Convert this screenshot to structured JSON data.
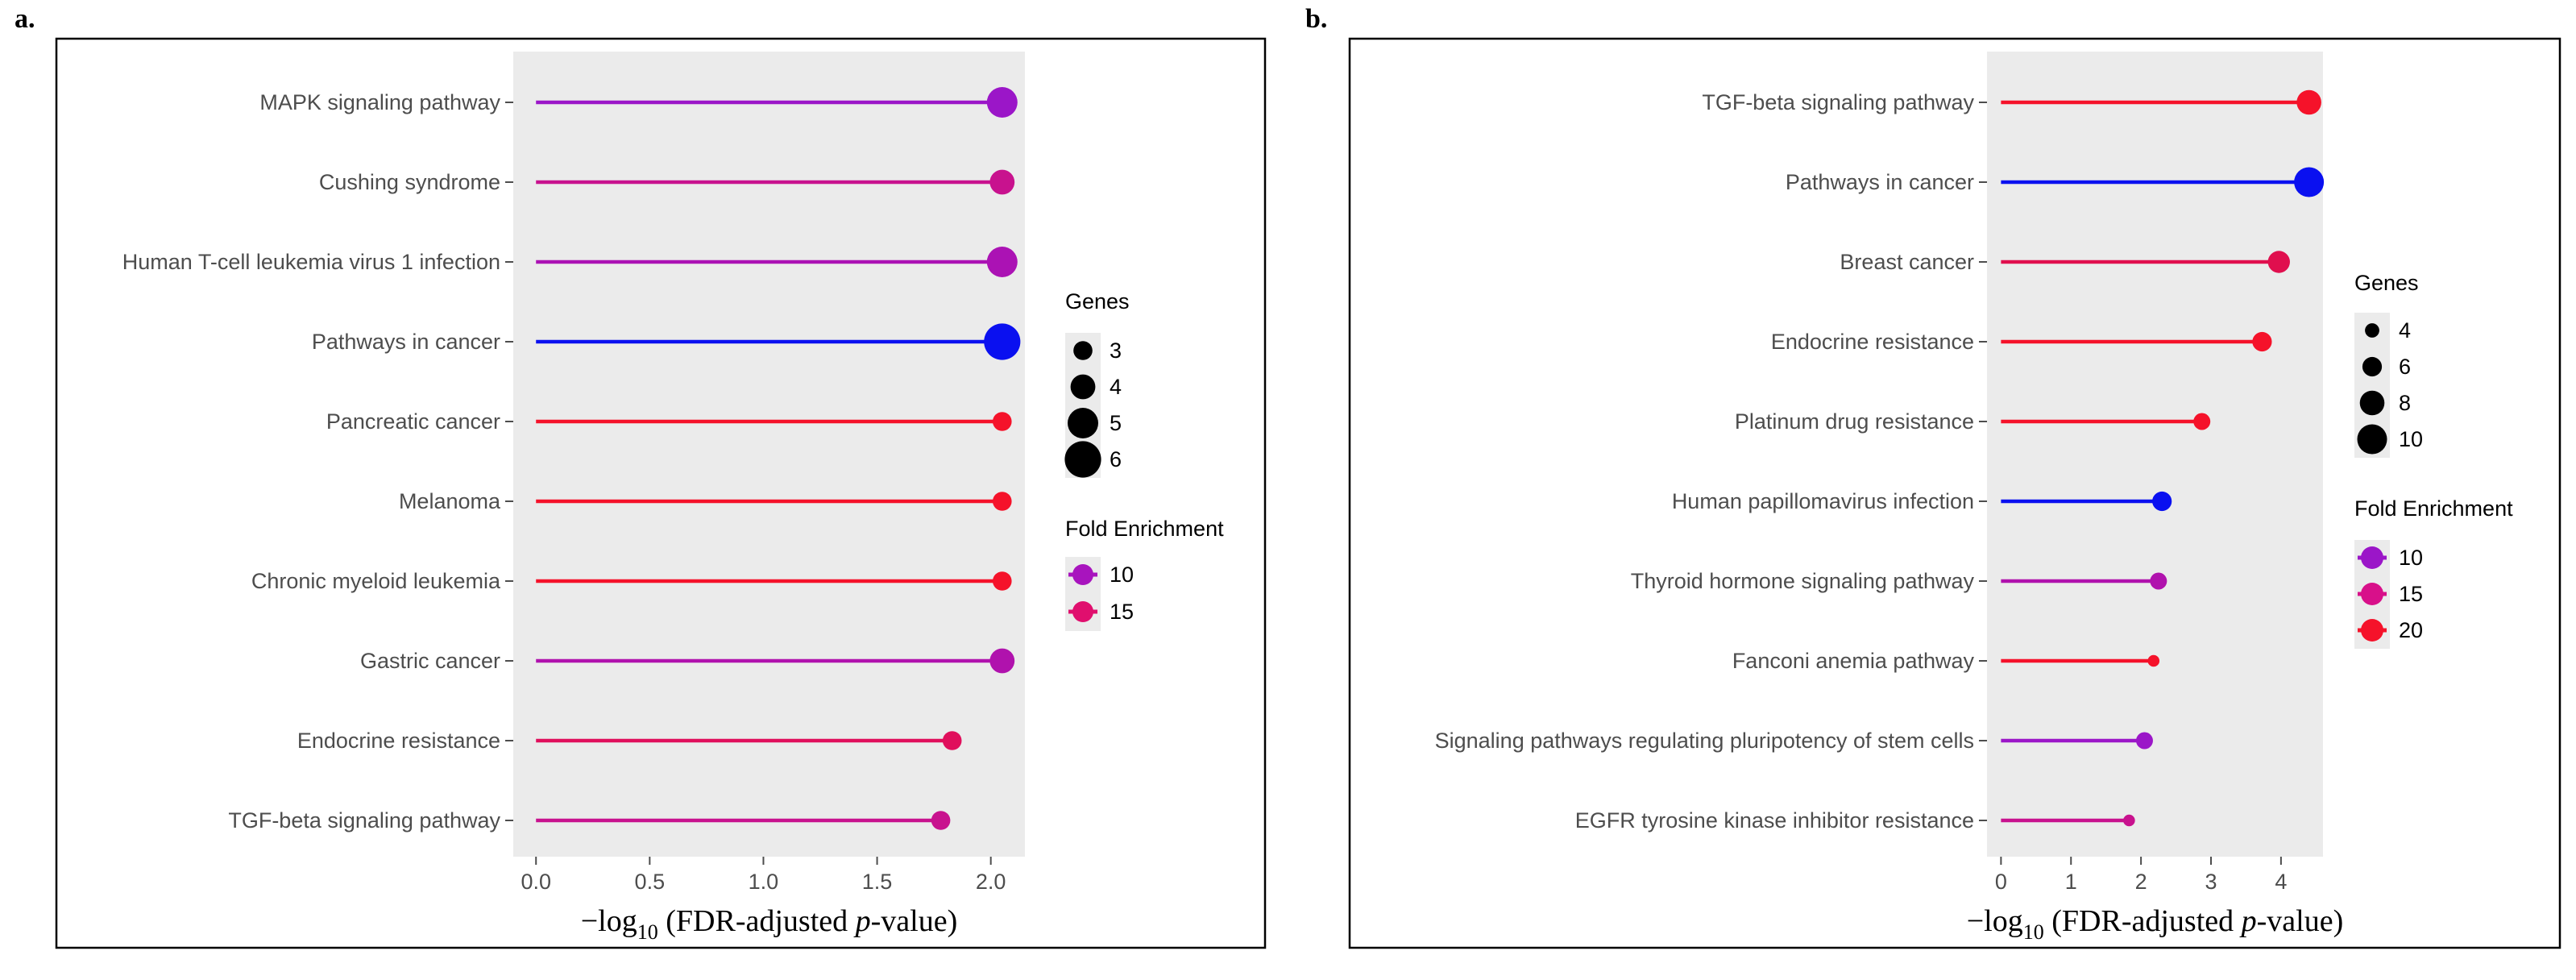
{
  "chart_data": [
    {
      "panel": "a.",
      "type": "lollipop",
      "xlabel_prefix": "−log",
      "xlabel_sub": "10",
      "xlabel_open": " (FDR-adjusted ",
      "xlabel_p": "p",
      "xlabel_close": "-value)",
      "xlim": [
        -0.1,
        2.15
      ],
      "xticks": [
        0.0,
        0.5,
        1.0,
        1.5,
        2.0
      ],
      "xtick_labels": [
        "0.0",
        "0.5",
        "1.0",
        "1.5",
        "2.0"
      ],
      "categories": [
        "MAPK signaling pathway",
        "Cushing syndrome",
        "Human T-cell leukemia virus 1 infection",
        "Pathways in cancer",
        "Pancreatic cancer",
        "Melanoma",
        "Chronic myeloid leukemia",
        "Gastric cancer",
        "Endocrine resistance",
        "TGF-beta signaling pathway"
      ],
      "values": [
        2.05,
        2.05,
        2.05,
        2.05,
        2.05,
        2.05,
        2.05,
        2.05,
        1.83,
        1.78
      ],
      "genes": [
        5,
        4,
        5,
        6,
        3,
        3,
        3,
        4,
        3,
        3
      ],
      "colors": [
        "#9b16c8",
        "#c8128e",
        "#ab12b4",
        "#0a10f0",
        "#f5122a",
        "#f5122a",
        "#f5122a",
        "#b012ad",
        "#e00f5c",
        "#c8128e"
      ],
      "legend_genes_title": "Genes",
      "legend_genes": [
        {
          "label": "3",
          "genes": 3
        },
        {
          "label": "4",
          "genes": 4
        },
        {
          "label": "5",
          "genes": 5
        },
        {
          "label": "6",
          "genes": 6
        }
      ],
      "legend_fe_title": "Fold Enrichment",
      "legend_fe": [
        {
          "label": "10",
          "color": "#a814be"
        },
        {
          "label": "15",
          "color": "#e00f6e"
        }
      ]
    },
    {
      "panel": "b.",
      "type": "lollipop",
      "xlabel_prefix": "−log",
      "xlabel_sub": "10",
      "xlabel_open": " (FDR-adjusted ",
      "xlabel_p": "p",
      "xlabel_close": "-value)",
      "xlim": [
        -0.2,
        4.6
      ],
      "xticks": [
        0,
        1,
        2,
        3,
        4
      ],
      "xtick_labels": [
        "0",
        "1",
        "2",
        "3",
        "4"
      ],
      "categories": [
        "TGF-beta signaling pathway",
        "Pathways in cancer",
        "Breast cancer",
        "Endocrine resistance",
        "Platinum drug resistance",
        "Human papillomavirus infection",
        "Thyroid hormone signaling pathway",
        "Fanconi anemia pathway",
        "Signaling pathways regulating pluripotency of stem cells",
        "EGFR tyrosine kinase inhibitor resistance"
      ],
      "values": [
        4.4,
        4.4,
        3.97,
        3.73,
        2.87,
        2.3,
        2.25,
        2.18,
        2.05,
        1.83
      ],
      "genes": [
        8,
        10,
        7,
        6,
        5,
        6,
        5,
        3,
        5,
        3
      ],
      "colors": [
        "#f5122a",
        "#0a10f0",
        "#e00f4e",
        "#f5122a",
        "#f5122a",
        "#0a10f0",
        "#b012ad",
        "#f5122a",
        "#9b16c8",
        "#c8128e"
      ],
      "legend_genes_title": "Genes",
      "legend_genes": [
        {
          "label": "4",
          "genes": 4
        },
        {
          "label": "6",
          "genes": 6
        },
        {
          "label": "8",
          "genes": 8
        },
        {
          "label": "10",
          "genes": 10
        }
      ],
      "legend_fe_title": "Fold Enrichment",
      "legend_fe": [
        {
          "label": "10",
          "color": "#9b16c8"
        },
        {
          "label": "15",
          "color": "#d8108a"
        },
        {
          "label": "20",
          "color": "#f5122a"
        }
      ]
    }
  ]
}
